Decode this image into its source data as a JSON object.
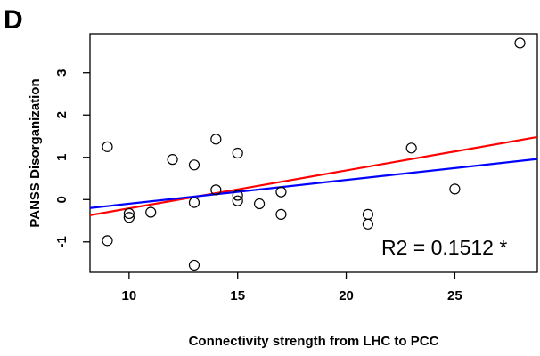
{
  "panel_label": "D",
  "annotation": "R2 = 0.1512 *",
  "chart_data": {
    "type": "scatter",
    "xlabel": "Connectivity strength from LHC to PCC",
    "ylabel": "PANSS  Disorganization",
    "xlim": [
      8.2,
      28.8
    ],
    "ylim": [
      -1.72,
      3.92
    ],
    "x_ticks": [
      "10",
      "15",
      "20",
      "25"
    ],
    "y_ticks": [
      "-1",
      "0",
      "1",
      "2",
      "3"
    ],
    "grid": false,
    "points": [
      {
        "x": 9,
        "y": 1.25
      },
      {
        "x": 9,
        "y": -0.97
      },
      {
        "x": 10,
        "y": -0.33
      },
      {
        "x": 10,
        "y": -0.42
      },
      {
        "x": 11,
        "y": -0.3
      },
      {
        "x": 12,
        "y": 0.95
      },
      {
        "x": 13,
        "y": 0.82
      },
      {
        "x": 13,
        "y": -0.07
      },
      {
        "x": 13,
        "y": -1.55
      },
      {
        "x": 14,
        "y": 1.43
      },
      {
        "x": 14,
        "y": 0.23
      },
      {
        "x": 15,
        "y": 1.1
      },
      {
        "x": 15,
        "y": 0.1
      },
      {
        "x": 15,
        "y": -0.03
      },
      {
        "x": 16,
        "y": -0.1
      },
      {
        "x": 17,
        "y": 0.18
      },
      {
        "x": 17,
        "y": -0.35
      },
      {
        "x": 21,
        "y": -0.35
      },
      {
        "x": 21,
        "y": -0.58
      },
      {
        "x": 23,
        "y": 1.22
      },
      {
        "x": 25,
        "y": 0.25
      },
      {
        "x": 28,
        "y": 3.7
      }
    ],
    "fit_lines": [
      {
        "color": "#ff0000",
        "x": [
          8.2,
          28.8
        ],
        "y": [
          -0.37,
          1.48
        ]
      },
      {
        "color": "#0000ff",
        "x": [
          8.2,
          28.8
        ],
        "y": [
          -0.2,
          0.96
        ]
      }
    ]
  }
}
